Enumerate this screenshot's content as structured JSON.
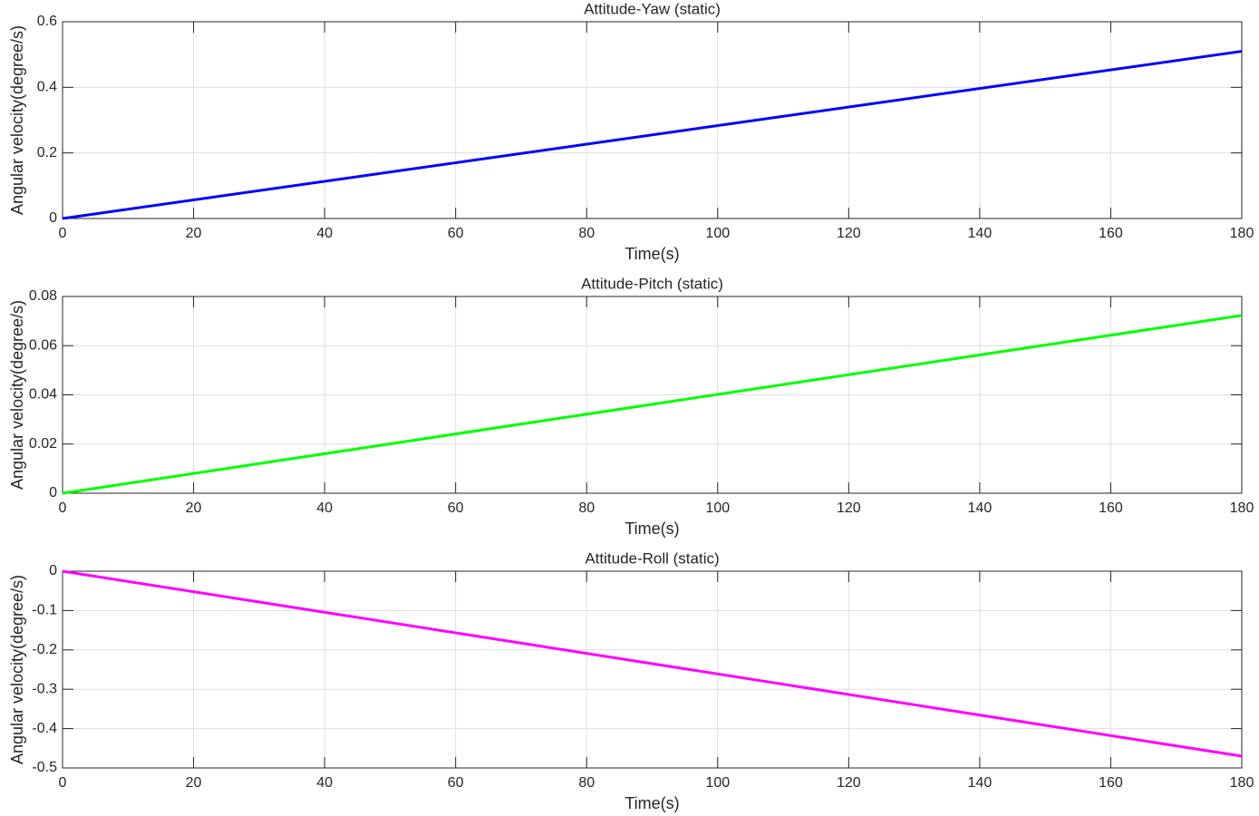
{
  "chart_data": [
    {
      "type": "line",
      "title": "Attitude-Yaw (static)",
      "xlabel": "Time(s)",
      "ylabel": "Angular velocity(degree/s)",
      "x": [
        0,
        180
      ],
      "values": [
        0,
        0.51
      ],
      "color": "#0000ff",
      "xlim": [
        0,
        180
      ],
      "xticks": [
        0,
        20,
        40,
        60,
        80,
        100,
        120,
        140,
        160,
        180
      ],
      "ylim": [
        0,
        0.6
      ],
      "yticks": [
        0,
        0.2,
        0.4,
        0.6
      ],
      "grid": true
    },
    {
      "type": "line",
      "title": "Attitude-Pitch (static)",
      "xlabel": "Time(s)",
      "ylabel": "Angular velocity(degree/s)",
      "x": [
        0,
        180
      ],
      "values": [
        0,
        0.0723
      ],
      "color": "#00ff00",
      "xlim": [
        0,
        180
      ],
      "xticks": [
        0,
        20,
        40,
        60,
        80,
        100,
        120,
        140,
        160,
        180
      ],
      "ylim": [
        0,
        0.08
      ],
      "yticks": [
        0,
        0.02,
        0.04,
        0.06,
        0.08
      ],
      "grid": true
    },
    {
      "type": "line",
      "title": "Attitude-Roll (static)",
      "xlabel": "Time(s)",
      "ylabel": "Angular velocity(degree/s)",
      "x": [
        0,
        180
      ],
      "values": [
        0,
        -0.47
      ],
      "color": "#ff00ff",
      "xlim": [
        0,
        180
      ],
      "xticks": [
        0,
        20,
        40,
        60,
        80,
        100,
        120,
        140,
        160,
        180
      ],
      "ylim": [
        -0.5,
        0
      ],
      "yticks": [
        -0.5,
        -0.4,
        -0.3,
        -0.2,
        -0.1,
        0
      ],
      "grid": true
    }
  ]
}
